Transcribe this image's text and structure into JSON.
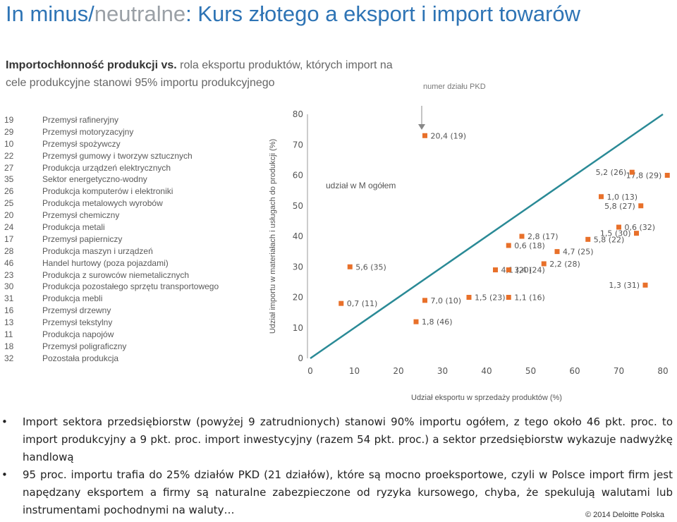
{
  "header": {
    "title_part1": "In minus",
    "title_sep": "/",
    "title_part2": "neutralne",
    "title_part3": ": Kurs złotego a eksport i import towarów",
    "subtitle_bold": "Importochłonność produkcji vs.",
    "subtitle_rest": " rola eksportu produktów, których import na cele produkcyjne stanowi 95% importu produkcyjnego"
  },
  "legend": [
    {
      "code": "19",
      "name": "Przemysł rafineryjny"
    },
    {
      "code": "29",
      "name": "Przemysł motoryzacyjny"
    },
    {
      "code": "10",
      "name": "Przemysł spożywczy"
    },
    {
      "code": "22",
      "name": "Przemysł gumowy i tworzyw sztucznych"
    },
    {
      "code": "27",
      "name": "Produkcja urządzeń elektrycznych"
    },
    {
      "code": "35",
      "name": "Sektor energetyczno-wodny"
    },
    {
      "code": "26",
      "name": "Produkcja komputerów i elektroniki"
    },
    {
      "code": "25",
      "name": "Produkcja metalowych wyrobów"
    },
    {
      "code": "20",
      "name": "Przemysł chemiczny"
    },
    {
      "code": "24",
      "name": "Produkcja metali"
    },
    {
      "code": "17",
      "name": "Przemysł papierniczy"
    },
    {
      "code": "28",
      "name": "Produkcja maszyn i urządzeń"
    },
    {
      "code": "46",
      "name": "Handel hurtowy (poza pojazdami)"
    },
    {
      "code": "23",
      "name": "Produkcja z surowców niemetalicznych"
    },
    {
      "code": "30",
      "name": "Produkcja pozostałego sprzętu transportowego"
    },
    {
      "code": "31",
      "name": "Produkcja mebli"
    },
    {
      "code": "16",
      "name": "Przemysł drzewny"
    },
    {
      "code": "13",
      "name": "Przemysł tekstylny"
    },
    {
      "code": "11",
      "name": "Produkcja napojów"
    },
    {
      "code": "18",
      "name": "Przemysł poligraficzny"
    },
    {
      "code": "32",
      "name": "Pozostała produkcja"
    }
  ],
  "chart_data": {
    "type": "scatter",
    "xlabel": "Udział eksportu w sprzedaży produktów (%)",
    "ylabel": "Udział importu w materiałach i usługach do produkcji (%)",
    "xlim": [
      0,
      80
    ],
    "ylim": [
      0,
      80
    ],
    "xticks": [
      0,
      10,
      20,
      30,
      40,
      50,
      60,
      70,
      80
    ],
    "yticks": [
      0,
      10,
      20,
      30,
      40,
      50,
      60,
      70,
      80
    ],
    "reference_line_label": "udział w M ogółem",
    "pkd_annotation": "numer działu PKD",
    "marker_color": "#e8702a",
    "line_color": "#2a8a96",
    "points": [
      {
        "x": 26,
        "y": 73,
        "label": "20,4 (19)"
      },
      {
        "x": 81,
        "y": 60,
        "label": "17,8 (29)"
      },
      {
        "x": 73,
        "y": 61,
        "label": "5,2 (26)"
      },
      {
        "x": 66,
        "y": 53,
        "label": "1,0 (13)"
      },
      {
        "x": 75,
        "y": 50,
        "label": "5,8 (27)"
      },
      {
        "x": 70,
        "y": 43,
        "label": "0,6 (32)"
      },
      {
        "x": 74,
        "y": 41,
        "label": "1,5 (30)"
      },
      {
        "x": 63,
        "y": 39,
        "label": "5,8 (22)"
      },
      {
        "x": 48,
        "y": 40,
        "label": "2,8 (17)"
      },
      {
        "x": 45,
        "y": 37,
        "label": "0,6 (18)"
      },
      {
        "x": 56,
        "y": 35,
        "label": "4,7 (25)"
      },
      {
        "x": 53,
        "y": 31,
        "label": "2,2 (28)"
      },
      {
        "x": 42,
        "y": 29,
        "label": "4,1 (20)"
      },
      {
        "x": 45,
        "y": 29,
        "label": "3,4 (24)"
      },
      {
        "x": 76,
        "y": 24,
        "label": "1,3 (31)"
      },
      {
        "x": 9,
        "y": 30,
        "label": "5,6 (35)"
      },
      {
        "x": 36,
        "y": 20,
        "label": "1,5 (23)"
      },
      {
        "x": 45,
        "y": 20,
        "label": "1,1 (16)"
      },
      {
        "x": 26,
        "y": 19,
        "label": "7,0 (10)"
      },
      {
        "x": 7,
        "y": 18,
        "label": "0,7 (11)"
      },
      {
        "x": 24,
        "y": 12,
        "label": "1,8 (46)"
      }
    ]
  },
  "bullets": [
    "Import sektora przedsiębiorstw (powyżej 9 zatrudnionych) stanowi 90% importu ogółem, z tego około 46 pkt. proc. to import produkcyjny a 9 pkt. proc. import inwestycyjny (razem 54 pkt. proc.) a sektor przedsiębiorstw wykazuje nadwyżkę handlową",
    "95 proc. importu trafia do 25% działów PKD (21 działów), które są mocno proeksportowe, czyli w Polsce import firm jest napędzany eksportem a firmy są naturalne zabezpieczone od ryzyka kursowego, chyba, że spekulują walutami lub instrumentami pochodnymi na waluty…"
  ],
  "footer": "© 2014 Deloitte Polska"
}
